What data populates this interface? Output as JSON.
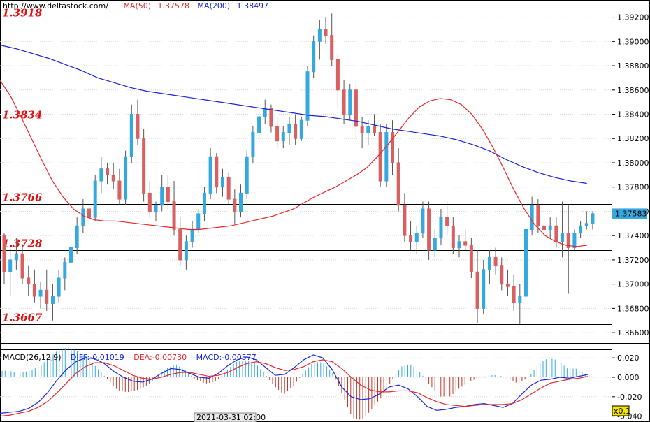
{
  "header": {
    "url": "http://www.deltastock.com/",
    "ma50_label": "MA(50)",
    "ma50_value": "1.37578",
    "ma200_label": "MA(200)",
    "ma200_value": "1.38497",
    "ma50_color": "#e8262a",
    "ma200_color": "#1a24d8"
  },
  "levels": [
    {
      "label": "1.3918",
      "value": 1.3918
    },
    {
      "label": "1.3834",
      "value": 1.3834
    },
    {
      "label": "1.3766",
      "value": 1.3766
    },
    {
      "label": "1.3728",
      "value": 1.3728
    },
    {
      "label": "1.3667",
      "value": 1.3667
    }
  ],
  "price_axis": {
    "ticks": [
      "1.39200",
      "1.39000",
      "1.38800",
      "1.38600",
      "1.38400",
      "1.38200",
      "1.38000",
      "1.37800",
      "1.37600",
      "1.37400",
      "1.37200",
      "1.37000",
      "1.36800",
      "1.36600"
    ],
    "current_price": "1.37583",
    "current_color": "#35a8e0"
  },
  "macd": {
    "title": "MACD(26,12,9)",
    "diff_label": "DIFF:-0.01019",
    "dea_label": "DEA:-0.00730",
    "macd_label": "MACD:-0.00577",
    "ticks": [
      "0.020",
      "0.000",
      "-0.020",
      "-0.040"
    ],
    "zoom_label": "x0.1",
    "diff_color": "#1a24d8",
    "dea_color": "#e8262a",
    "pos_bar_color": "#35a8e0",
    "neg_bar_color": "#c0392b"
  },
  "time_axis": {
    "label": "2021-03-31 02:00"
  },
  "chart_data": {
    "type": "candlestick",
    "ylim": [
      1.3652,
      1.3933
    ],
    "bull_color": "#35a8e0",
    "bear_color": "#d96060",
    "ohlc": [
      [
        1.374,
        1.3742,
        1.37,
        1.371
      ],
      [
        1.371,
        1.373,
        1.369,
        1.372
      ],
      [
        1.372,
        1.3738,
        1.3712,
        1.3725
      ],
      [
        1.3725,
        1.3733,
        1.37,
        1.3705
      ],
      [
        1.3705,
        1.3715,
        1.369,
        1.37
      ],
      [
        1.37,
        1.3712,
        1.3685,
        1.369
      ],
      [
        1.369,
        1.3702,
        1.368,
        1.3695
      ],
      [
        1.3695,
        1.3712,
        1.3678,
        1.3684
      ],
      [
        1.3684,
        1.37,
        1.367,
        1.369
      ],
      [
        1.369,
        1.3712,
        1.3685,
        1.3705
      ],
      [
        1.3705,
        1.3722,
        1.3695,
        1.3718
      ],
      [
        1.3718,
        1.3738,
        1.371,
        1.373
      ],
      [
        1.373,
        1.3755,
        1.3725,
        1.3748
      ],
      [
        1.3748,
        1.377,
        1.3742,
        1.3762
      ],
      [
        1.3762,
        1.3775,
        1.3748,
        1.3755
      ],
      [
        1.3755,
        1.379,
        1.3752,
        1.3785
      ],
      [
        1.3785,
        1.3805,
        1.3775,
        1.3795
      ],
      [
        1.3795,
        1.38,
        1.3782,
        1.379
      ],
      [
        1.379,
        1.38,
        1.3778,
        1.3785
      ],
      [
        1.3785,
        1.3795,
        1.3765,
        1.377
      ],
      [
        1.377,
        1.381,
        1.3765,
        1.3805
      ],
      [
        1.3805,
        1.3848,
        1.38,
        1.384
      ],
      [
        1.384,
        1.3852,
        1.3815,
        1.382
      ],
      [
        1.382,
        1.3828,
        1.3768,
        1.3775
      ],
      [
        1.3775,
        1.3785,
        1.3755,
        1.376
      ],
      [
        1.376,
        1.3768,
        1.3752,
        1.3765
      ],
      [
        1.3765,
        1.379,
        1.376,
        1.378
      ],
      [
        1.378,
        1.379,
        1.3762,
        1.3768
      ],
      [
        1.3768,
        1.3785,
        1.374,
        1.3745
      ],
      [
        1.3745,
        1.3755,
        1.3715,
        1.372
      ],
      [
        1.372,
        1.374,
        1.3712,
        1.3735
      ],
      [
        1.3735,
        1.3752,
        1.373,
        1.3745
      ],
      [
        1.3745,
        1.3762,
        1.3742,
        1.3758
      ],
      [
        1.3758,
        1.378,
        1.3752,
        1.3775
      ],
      [
        1.3775,
        1.3812,
        1.377,
        1.3805
      ],
      [
        1.3805,
        1.3808,
        1.3775,
        1.378
      ],
      [
        1.378,
        1.3795,
        1.3772,
        1.3788
      ],
      [
        1.3788,
        1.3792,
        1.3765,
        1.377
      ],
      [
        1.377,
        1.3778,
        1.375,
        1.376
      ],
      [
        1.376,
        1.3782,
        1.3755,
        1.3775
      ],
      [
        1.3775,
        1.381,
        1.377,
        1.3805
      ],
      [
        1.3805,
        1.383,
        1.38,
        1.3825
      ],
      [
        1.3825,
        1.3842,
        1.3818,
        1.3838
      ],
      [
        1.3838,
        1.3852,
        1.3832,
        1.3845
      ],
      [
        1.3845,
        1.3848,
        1.3825,
        1.383
      ],
      [
        1.383,
        1.3838,
        1.3812,
        1.3818
      ],
      [
        1.3818,
        1.383,
        1.3812,
        1.3825
      ],
      [
        1.3825,
        1.3838,
        1.3815,
        1.3832
      ],
      [
        1.3832,
        1.384,
        1.3815,
        1.382
      ],
      [
        1.382,
        1.3838,
        1.3818,
        1.3835
      ],
      [
        1.3835,
        1.388,
        1.383,
        1.3875
      ],
      [
        1.3875,
        1.3905,
        1.387,
        1.39
      ],
      [
        1.39,
        1.3918,
        1.3885,
        1.391
      ],
      [
        1.391,
        1.392,
        1.3898,
        1.3905
      ],
      [
        1.3905,
        1.3923,
        1.388,
        1.3885
      ],
      [
        1.3885,
        1.389,
        1.3845,
        1.386
      ],
      [
        1.386,
        1.3868,
        1.3832,
        1.384
      ],
      [
        1.384,
        1.3865,
        1.3835,
        1.386
      ],
      [
        1.386,
        1.3868,
        1.382,
        1.383
      ],
      [
        1.383,
        1.3838,
        1.3812,
        1.3825
      ],
      [
        1.3825,
        1.3835,
        1.3815,
        1.383
      ],
      [
        1.383,
        1.384,
        1.3822,
        1.3825
      ],
      [
        1.3825,
        1.3832,
        1.378,
        1.3785
      ],
      [
        1.3785,
        1.3832,
        1.378,
        1.3825
      ],
      [
        1.3825,
        1.3835,
        1.379,
        1.38
      ],
      [
        1.38,
        1.3812,
        1.376,
        1.3765
      ],
      [
        1.3765,
        1.3775,
        1.3735,
        1.374
      ],
      [
        1.374,
        1.3752,
        1.3728,
        1.3735
      ],
      [
        1.3735,
        1.3748,
        1.3725,
        1.3742
      ],
      [
        1.3742,
        1.3768,
        1.3738,
        1.3762
      ],
      [
        1.3762,
        1.3768,
        1.372,
        1.3728
      ],
      [
        1.3728,
        1.3745,
        1.3722,
        1.3738
      ],
      [
        1.3738,
        1.3762,
        1.3732,
        1.3755
      ],
      [
        1.3755,
        1.3768,
        1.374,
        1.3748
      ],
      [
        1.3748,
        1.3755,
        1.3725,
        1.373
      ],
      [
        1.373,
        1.374,
        1.3722,
        1.3735
      ],
      [
        1.3735,
        1.3745,
        1.3728,
        1.3732
      ],
      [
        1.3732,
        1.3738,
        1.3705,
        1.371
      ],
      [
        1.371,
        1.3728,
        1.3668,
        1.368
      ],
      [
        1.368,
        1.372,
        1.3675,
        1.3712
      ],
      [
        1.3712,
        1.3728,
        1.37,
        1.3722
      ],
      [
        1.3722,
        1.373,
        1.3708,
        1.3715
      ],
      [
        1.3715,
        1.3722,
        1.3695,
        1.37
      ],
      [
        1.37,
        1.3712,
        1.369,
        1.3698
      ],
      [
        1.3698,
        1.3708,
        1.3678,
        1.3685
      ],
      [
        1.3685,
        1.37,
        1.3667,
        1.369
      ],
      [
        1.369,
        1.3748,
        1.3688,
        1.3745
      ],
      [
        1.3745,
        1.3772,
        1.374,
        1.3765
      ],
      [
        1.3765,
        1.377,
        1.3742,
        1.3748
      ],
      [
        1.3748,
        1.3755,
        1.3738,
        1.3745
      ],
      [
        1.3745,
        1.3755,
        1.3738,
        1.3748
      ],
      [
        1.3748,
        1.3755,
        1.373,
        1.3735
      ],
      [
        1.3735,
        1.3768,
        1.3722,
        1.3742
      ],
      [
        1.3742,
        1.3765,
        1.3692,
        1.373
      ],
      [
        1.373,
        1.3745,
        1.3728,
        1.3742
      ],
      [
        1.3742,
        1.3752,
        1.3738,
        1.3748
      ],
      [
        1.3748,
        1.376,
        1.3745,
        1.375
      ],
      [
        1.375,
        1.376,
        1.3745,
        1.3758
      ]
    ],
    "ma50": [
      1.3868,
      1.3855,
      1.3838,
      1.382,
      1.3802,
      1.3785,
      1.3772,
      1.3762,
      1.3756,
      1.3753,
      1.3752,
      1.3752,
      1.3751,
      1.375,
      1.3749,
      1.3748,
      1.3747,
      1.3746,
      1.3745,
      1.3745,
      1.3746,
      1.3747,
      1.3748,
      1.375,
      1.3752,
      1.3754,
      1.3756,
      1.3759,
      1.3762,
      1.3767,
      1.3772,
      1.3776,
      1.378,
      1.3785,
      1.379,
      1.3796,
      1.3805,
      1.3815,
      1.3826,
      1.3837,
      1.3846,
      1.3851,
      1.3853,
      1.3852,
      1.3848,
      1.384,
      1.3828,
      1.3813,
      1.3796,
      1.3778,
      1.3762,
      1.3749,
      1.374,
      1.3735,
      1.3732,
      1.3731,
      1.3732
    ],
    "ma50_x": [
      0,
      10,
      20,
      30,
      40,
      50,
      60,
      70,
      80,
      90,
      100,
      110,
      120,
      130,
      140,
      150,
      160,
      170,
      180,
      190,
      200,
      210,
      220,
      230,
      240,
      250,
      260,
      270,
      280,
      290,
      300,
      310,
      320,
      330,
      340,
      350,
      360,
      370,
      380,
      390,
      400,
      410,
      420,
      430,
      440,
      450,
      460,
      470,
      480,
      490,
      500,
      510,
      520,
      530,
      540,
      550,
      560
    ],
    "ma200": [
      1.3897,
      1.3894,
      1.389,
      1.3886,
      1.3881,
      1.3876,
      1.387,
      1.3866,
      1.3862,
      1.3859,
      1.3857,
      1.3855,
      1.3853,
      1.3851,
      1.3849,
      1.3847,
      1.3845,
      1.3843,
      1.3841,
      1.3839,
      1.3838,
      1.3836,
      1.3834,
      1.3831,
      1.3828,
      1.3826,
      1.3824,
      1.3822,
      1.3819,
      1.3815,
      1.381,
      1.3803,
      1.3797,
      1.3792,
      1.3788,
      1.3785,
      1.3783
    ],
    "ma200_x": [
      0,
      15,
      30,
      45,
      60,
      75,
      90,
      105,
      120,
      135,
      150,
      165,
      180,
      195,
      210,
      225,
      240,
      255,
      270,
      285,
      300,
      315,
      330,
      345,
      360,
      375,
      390,
      405,
      420,
      435,
      450,
      465,
      480,
      495,
      510,
      525,
      540
    ],
    "macd_diff": [
      -0.037,
      -0.036,
      -0.035,
      -0.032,
      -0.026,
      -0.016,
      -0.003,
      0.008,
      0.016,
      0.02,
      0.019,
      0.014,
      0.006,
      0.0,
      -0.004,
      -0.005,
      -0.002,
      0.004,
      0.009,
      0.008,
      0.004,
      0.0,
      -0.001,
      0.004,
      0.012,
      0.018,
      0.021,
      0.018,
      0.01,
      0.002,
      0.003,
      0.01,
      0.018,
      0.023,
      0.02,
      0.008,
      -0.01,
      -0.02,
      -0.023,
      -0.022,
      -0.017,
      -0.01,
      -0.008,
      -0.012,
      -0.02,
      -0.03,
      -0.034,
      -0.033,
      -0.031,
      -0.03,
      -0.028,
      -0.027,
      -0.029,
      -0.031,
      -0.027,
      -0.017,
      -0.008,
      -0.003,
      -0.002,
      0.0,
      -0.001,
      0.001,
      0.003
    ],
    "macd_dea": [
      -0.04,
      -0.039,
      -0.037,
      -0.035,
      -0.031,
      -0.025,
      -0.016,
      -0.006,
      0.004,
      0.011,
      0.015,
      0.015,
      0.012,
      0.007,
      0.002,
      -0.001,
      -0.002,
      0.0,
      0.003,
      0.005,
      0.005,
      0.003,
      0.001,
      0.002,
      0.005,
      0.01,
      0.014,
      0.016,
      0.014,
      0.01,
      0.007,
      0.008,
      0.011,
      0.016,
      0.018,
      0.016,
      0.009,
      0.0,
      -0.008,
      -0.013,
      -0.015,
      -0.015,
      -0.014,
      -0.014,
      -0.016,
      -0.021,
      -0.025,
      -0.028,
      -0.029,
      -0.03,
      -0.029,
      -0.028,
      -0.028,
      -0.028,
      -0.027,
      -0.023,
      -0.017,
      -0.011,
      -0.006,
      -0.004,
      -0.002,
      -0.001,
      0.001
    ],
    "macd_x": [
      0,
      14,
      28,
      42,
      56,
      70,
      84,
      98,
      112,
      126,
      140,
      154,
      168,
      182,
      196,
      210,
      224,
      238,
      252,
      266,
      280,
      294,
      308,
      322,
      336,
      350,
      364,
      378,
      392,
      406,
      420,
      434,
      448,
      462,
      476,
      490,
      504,
      518,
      532,
      546,
      560,
      574,
      588,
      602,
      616,
      630,
      644,
      658,
      672,
      686,
      700,
      714,
      728,
      742,
      756,
      770,
      784,
      798,
      812,
      826,
      840,
      854,
      868
    ],
    "macd_ylim": [
      -0.046,
      0.028
    ]
  }
}
